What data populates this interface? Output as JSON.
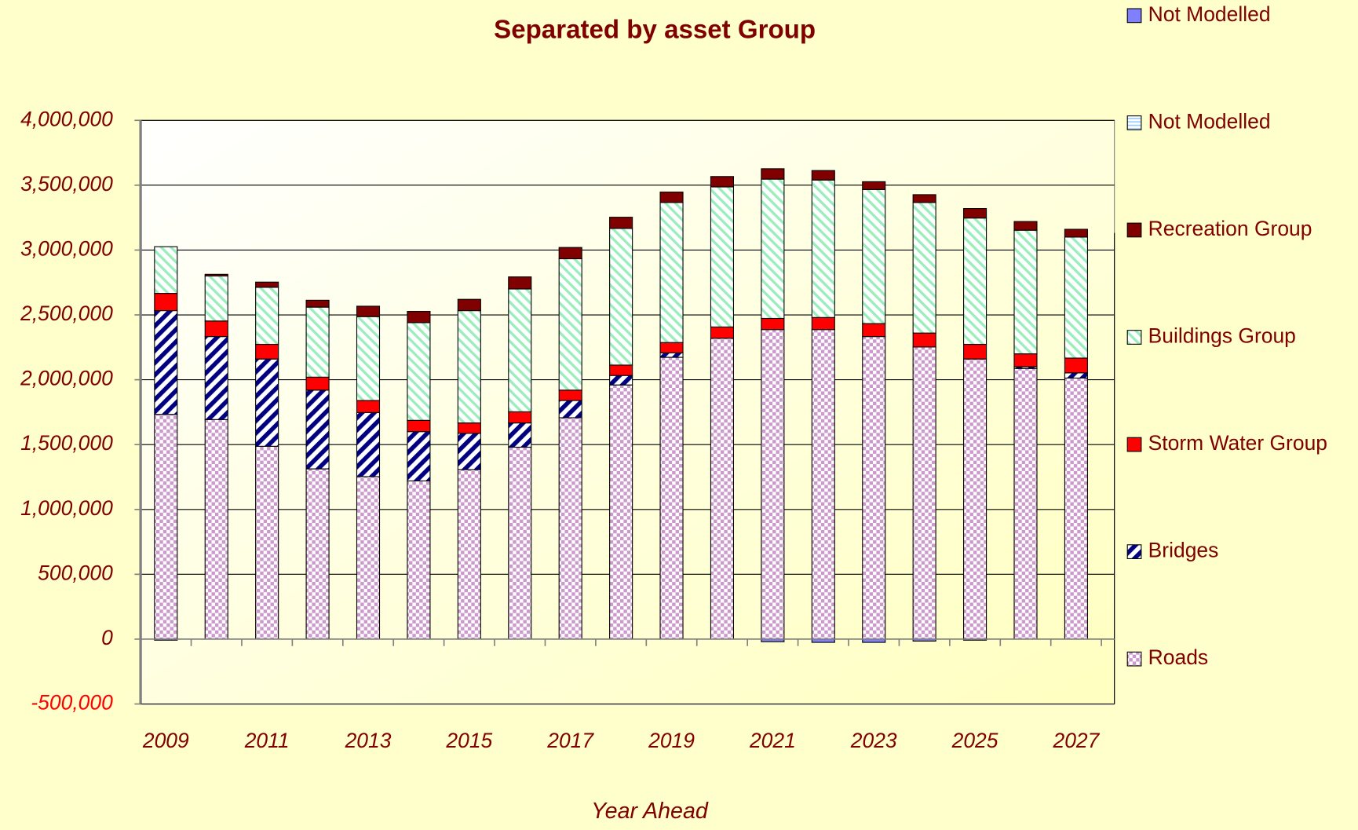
{
  "chart_data": {
    "type": "stacked_bar",
    "title": "Separated by asset Group",
    "x_label": "Year Ahead",
    "categories": [
      "2009",
      null,
      "2011",
      null,
      "2013",
      null,
      "2015",
      null,
      "2017",
      null,
      "2019",
      null,
      "2021",
      null,
      "2023",
      null,
      "2025",
      null,
      "2027"
    ],
    "ylim": [
      -500000,
      4000000
    ],
    "yticks": [
      {
        "value": -500000,
        "label": "-500,000"
      },
      0,
      {
        "value": 500000,
        "label": "500,000"
      },
      {
        "value": 1000000,
        "label": "1,000,000"
      },
      {
        "value": 1500000,
        "label": "1,500,000"
      },
      {
        "value": 2000000,
        "label": "2,000,000"
      },
      {
        "value": 2500000,
        "label": "2,500,000"
      },
      {
        "value": 3000000,
        "label": "3,000,000"
      },
      {
        "value": 3500000,
        "label": "3,500,000"
      },
      {
        "value": 4000000,
        "label": "4,000,000"
      }
    ],
    "grid": true,
    "legend": "right",
    "series": [
      {
        "name": "Roads",
        "color": "#cc99cc",
        "pattern": "checker",
        "values": [
          1733000,
          1693000,
          1487000,
          1313000,
          1253000,
          1220000,
          1307000,
          1480000,
          1707000,
          1960000,
          2173000,
          2320000,
          2387000,
          2387000,
          2333000,
          2253000,
          2160000,
          2087000,
          2013000
        ]
      },
      {
        "name": "Bridges",
        "color": "#000080",
        "pattern": "diagonal",
        "values": [
          800000,
          640000,
          673000,
          607000,
          494000,
          380000,
          280000,
          187000,
          133000,
          73000,
          34000,
          0,
          0,
          0,
          0,
          0,
          0,
          13000,
          40000
        ]
      },
      {
        "name": "Storm Water Group",
        "color": "#ff0000",
        "pattern": "solid",
        "values": [
          133000,
          120000,
          113000,
          100000,
          93000,
          87000,
          80000,
          86000,
          80000,
          80000,
          80000,
          87000,
          86000,
          93000,
          100000,
          107000,
          113000,
          100000,
          114000
        ]
      },
      {
        "name": "Buildings Group",
        "color": "#99eebb",
        "pattern": "hatch",
        "values": [
          360000,
          347000,
          440000,
          540000,
          647000,
          753000,
          866000,
          947000,
          1013000,
          1054000,
          1080000,
          1080000,
          1074000,
          1060000,
          1034000,
          1007000,
          974000,
          953000,
          933000
        ]
      },
      {
        "name": "Recreation Group",
        "color": "#800000",
        "pattern": "solid",
        "values": [
          0,
          13000,
          40000,
          53000,
          80000,
          87000,
          87000,
          93000,
          87000,
          86000,
          80000,
          80000,
          80000,
          73000,
          60000,
          60000,
          73000,
          67000,
          60000
        ]
      },
      {
        "name": "Not Modelled",
        "color": "#99ccff",
        "pattern": "lines",
        "values": [
          0,
          0,
          0,
          0,
          0,
          0,
          0,
          0,
          0,
          0,
          0,
          0,
          0,
          0,
          0,
          0,
          0,
          0,
          0
        ]
      },
      {
        "name": "Not Modelled",
        "color": "#8080ff",
        "pattern": "solid",
        "values": [
          -8000,
          0,
          0,
          0,
          0,
          0,
          0,
          0,
          0,
          0,
          0,
          0,
          -20000,
          -25000,
          -25000,
          -15000,
          -8000,
          0,
          0
        ]
      }
    ]
  }
}
